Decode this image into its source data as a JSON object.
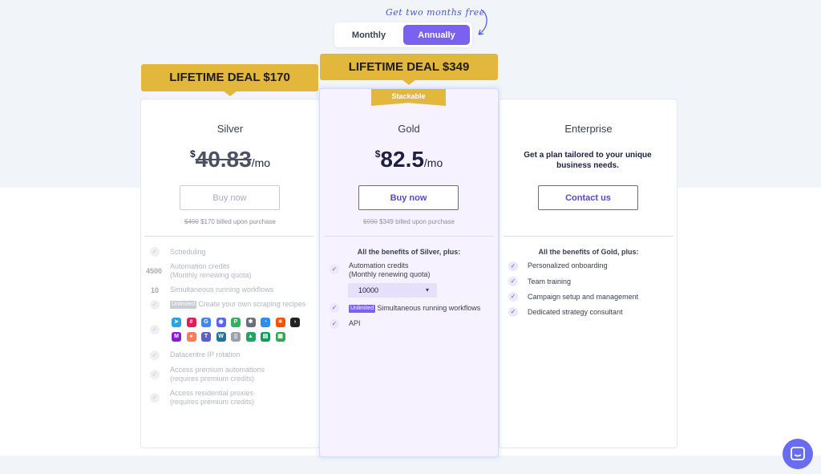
{
  "billing_toggle": {
    "promo_text": "Get two months free",
    "monthly_label": "Monthly",
    "annually_label": "Annually",
    "selected": "Annually"
  },
  "silver": {
    "banner": "LIFETIME DEAL $170",
    "name": "Silver",
    "currency": "$",
    "price": "40.83",
    "period": "/mo",
    "button": "Buy now",
    "billed_old": "$490",
    "billed_new": "$170 billed upon purchase",
    "features": {
      "scheduling": "Scheduling",
      "credits_num": "4500",
      "credits_label": "Automation credits",
      "credits_sub": "(Monthly renewing quota)",
      "workflows_num": "10",
      "workflows_label": "Simultaneous running workflows",
      "unlimited_tag": "Unlimited",
      "scraping_label": "Create your own scraping recipes",
      "datacentre": "Datacentre IP rotation",
      "premium_auto": "Access premium automations",
      "premium_auto_sub": "(requires premium credits)",
      "residential": "Access residential proxies",
      "residential_sub": "(requires premium credits)"
    },
    "integrations": [
      {
        "name": "telegram-icon",
        "color": "#2aa3e0",
        "glyph": "➤"
      },
      {
        "name": "slack-icon",
        "color": "#e01e5a",
        "glyph": "#"
      },
      {
        "name": "google-icon",
        "color": "#4285f4",
        "glyph": "G"
      },
      {
        "name": "discord-icon",
        "color": "#5865f2",
        "glyph": "◉"
      },
      {
        "name": "pipedrive-icon",
        "color": "#2eb360",
        "glyph": "P"
      },
      {
        "name": "webhooks-icon",
        "color": "#6b6f7a",
        "glyph": "✱"
      },
      {
        "name": "messenger-icon",
        "color": "#2c8ff0",
        "glyph": "◔"
      },
      {
        "name": "zapier-icon",
        "color": "#ff4f00",
        "glyph": "✳"
      },
      {
        "name": "terminal-icon",
        "color": "#222222",
        "glyph": "›"
      },
      {
        "name": "make-icon",
        "color": "#8a1ed6",
        "glyph": "M"
      },
      {
        "name": "hubspot-icon",
        "color": "#ff7a59",
        "glyph": "●"
      },
      {
        "name": "teams-icon",
        "color": "#5b5fc7",
        "glyph": "T"
      },
      {
        "name": "wordpress-icon",
        "color": "#21759b",
        "glyph": "W"
      },
      {
        "name": "bucket-icon",
        "color": "#9aa0ad",
        "glyph": "▯"
      },
      {
        "name": "google-drive-icon",
        "color": "#1fa463",
        "glyph": "▲"
      },
      {
        "name": "google-sheets-icon",
        "color": "#0f9d58",
        "glyph": "▤"
      },
      {
        "name": "google-sheets-icon-2",
        "color": "#34a853",
        "glyph": "▦"
      }
    ]
  },
  "gold": {
    "banner": "LIFETIME DEAL $349",
    "ribbon": "Stackable",
    "name": "Gold",
    "currency": "$",
    "price": "82.5",
    "period": "/mo",
    "button": "Buy now",
    "billed_old": "$990",
    "billed_new": "$349 billed upon purchase",
    "section_head": "All the benefits of Silver, plus:",
    "features": {
      "credits_label": "Automation credits",
      "credits_sub": "(Monthly renewing quota)",
      "credits_select": "10000",
      "unlimited_tag": "Unlimited",
      "workflows_label": "Simultaneous running workflows",
      "api": "API"
    }
  },
  "enterprise": {
    "name": "Enterprise",
    "tagline": "Get a plan tailored to your unique business needs.",
    "button": "Contact us",
    "section_head": "All the benefits of Gold, plus:",
    "features": [
      "Personalized onboarding",
      "Team training",
      "Campaign setup and management",
      "Dedicated strategy consultant"
    ]
  },
  "colors": {
    "accent": "#7b61f0",
    "banner": "#e2b73b",
    "chat": "#6a6cf0"
  }
}
